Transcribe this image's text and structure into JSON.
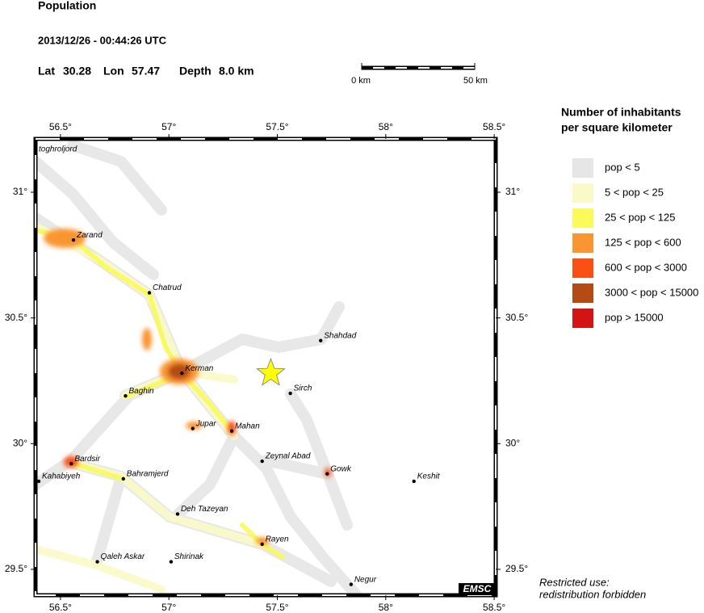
{
  "header": {
    "title": "Population",
    "datetime": "2013/12/26 - 00:44:26 UTC",
    "lat_label": "Lat",
    "lat": 30.28,
    "lon_label": "Lon",
    "lon": 57.47,
    "depth_label": "Depth",
    "depth": "8.0 km"
  },
  "scale_bar": {
    "start_label": "0 km",
    "end_label": "50 km"
  },
  "map": {
    "lonlim": [
      56.385,
      58.507
    ],
    "latlim": [
      29.397,
      31.212
    ],
    "lonticks": [
      {
        "value": 56.5,
        "label": "56.5°"
      },
      {
        "value": 57,
        "label": "57°"
      },
      {
        "value": 57.5,
        "label": "57.5°"
      },
      {
        "value": 58,
        "label": "58°"
      },
      {
        "value": 58.5,
        "label": "58.5°"
      }
    ],
    "latticks": [
      {
        "value": 29.5,
        "label": "29.5°"
      },
      {
        "value": 30,
        "label": "30°"
      },
      {
        "value": 30.5,
        "label": "30.5°"
      },
      {
        "value": 31,
        "label": "31°"
      }
    ],
    "edge_label": "toghroljord",
    "cities": [
      {
        "name": "Zarand",
        "lon": 56.56,
        "lat": 30.81
      },
      {
        "name": "Chatrud",
        "lon": 56.91,
        "lat": 30.6
      },
      {
        "name": "Shahdad",
        "lon": 57.7,
        "lat": 30.41
      },
      {
        "name": "Kerman",
        "lon": 57.06,
        "lat": 30.28
      },
      {
        "name": "Sirch",
        "lon": 57.56,
        "lat": 30.2
      },
      {
        "name": "Baghin",
        "lon": 56.8,
        "lat": 30.19
      },
      {
        "name": "Jupar",
        "lon": 57.11,
        "lat": 30.06
      },
      {
        "name": "Mahan",
        "lon": 57.29,
        "lat": 30.05
      },
      {
        "name": "Zeynal Abad",
        "lon": 57.43,
        "lat": 29.93
      },
      {
        "name": "Bardsir",
        "lon": 56.55,
        "lat": 29.92
      },
      {
        "name": "Gowk",
        "lon": 57.73,
        "lat": 29.88
      },
      {
        "name": "Keshit",
        "lon": 58.13,
        "lat": 29.85
      },
      {
        "name": "Kahabiyeh",
        "lon": 56.4,
        "lat": 29.85
      },
      {
        "name": "Bahramjerd",
        "lon": 56.79,
        "lat": 29.86
      },
      {
        "name": "Deh Tazeyan",
        "lon": 57.04,
        "lat": 29.72
      },
      {
        "name": "Rayen",
        "lon": 57.43,
        "lat": 29.6
      },
      {
        "name": "Qaleh Askar",
        "lon": 56.67,
        "lat": 29.53
      },
      {
        "name": "Shirinak",
        "lon": 57.01,
        "lat": 29.53
      },
      {
        "name": "Negur",
        "lon": 57.84,
        "lat": 29.44
      }
    ],
    "logo": "EMSC"
  },
  "legend": {
    "title_line1": "Number of inhabitants",
    "title_line2": "per square kilometer",
    "entries": [
      {
        "label": "pop < 5",
        "color": "#e6e6e6"
      },
      {
        "label": "5 < pop < 25",
        "color": "#fafac8"
      },
      {
        "label": "25 < pop < 125",
        "color": "#fafa5a"
      },
      {
        "label": "125 < pop < 600",
        "color": "#fa9632"
      },
      {
        "label": "600 < pop < 3000",
        "color": "#fa5014"
      },
      {
        "label": "3000 < pop < 15000",
        "color": "#b44b14"
      },
      {
        "label": "pop > 15000",
        "color": "#d21414"
      }
    ]
  },
  "footnote": {
    "line1": "Restricted use:",
    "line2": "redistribution forbidden"
  }
}
